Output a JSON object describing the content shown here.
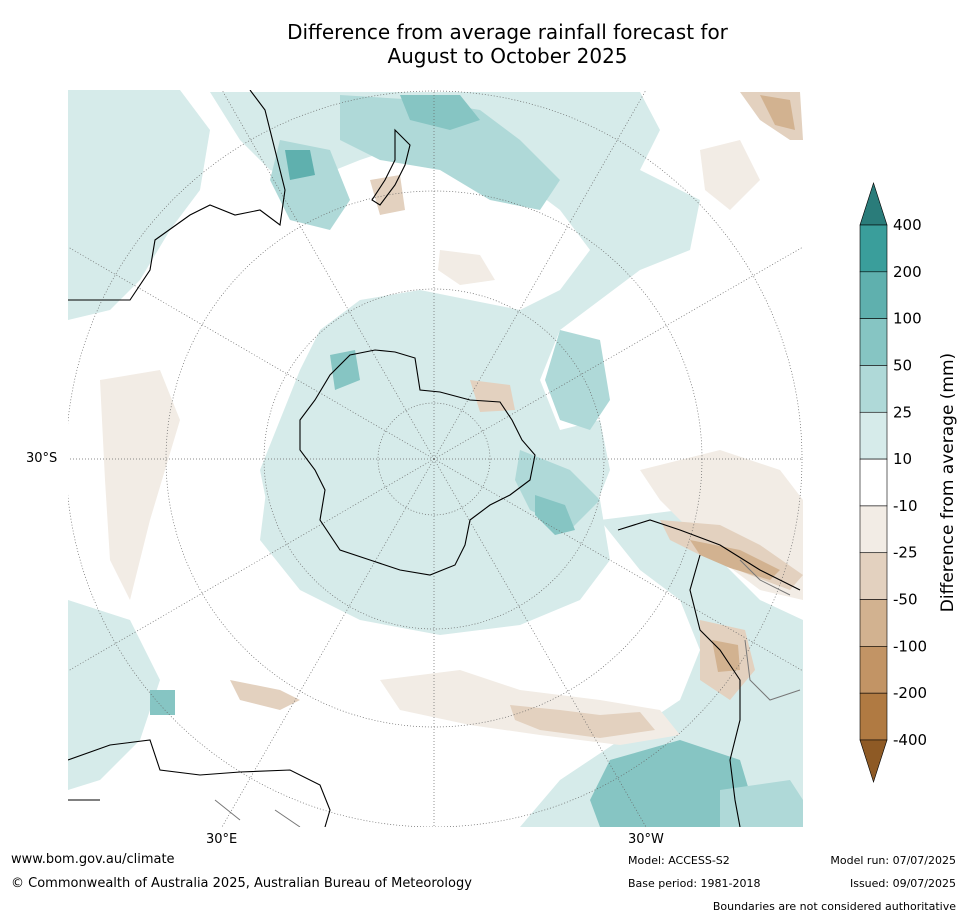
{
  "title_line1": "Difference from average rainfall forecast for",
  "title_line2": "August to October 2025",
  "map_labels": {
    "lat_30s": "30°S",
    "lon_30e": "30°E",
    "lon_30w": "30°W"
  },
  "colorbar": {
    "label": "Difference from average (mm)",
    "ticks": [
      "400",
      "200",
      "100",
      "50",
      "25",
      "10",
      "-10",
      "-25",
      "-50",
      "-100",
      "-200",
      "-400"
    ],
    "colors": [
      "#2a7c7a",
      "#3a9e9b",
      "#5fb0ae",
      "#86c5c3",
      "#afd9d8",
      "#d6ebea",
      "#ffffff",
      "#f2ece5",
      "#e3d1bf",
      "#d2b290",
      "#c29465",
      "#b07a42",
      "#8e5a25"
    ]
  },
  "footer": {
    "website": "www.bom.gov.au/climate",
    "copyright": "© Commonwealth of Australia 2025, Australian Bureau of Meteorology",
    "model": "Model: ACCESS-S2",
    "base_period": "Base period: 1981-2018",
    "model_run": "Model run: 07/07/2025",
    "issued": "Issued: 09/07/2025",
    "disclaimer": "Boundaries are not considered authoritative"
  }
}
